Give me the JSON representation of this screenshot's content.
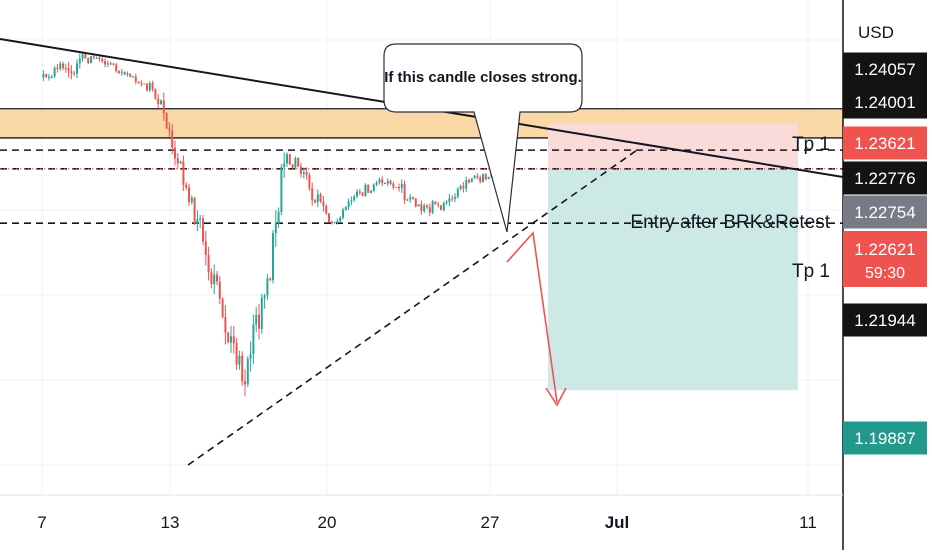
{
  "chart_data": {
    "type": "candlestick",
    "title": "",
    "xlabel": "",
    "ylabel": "",
    "currency": "USD",
    "ylim": [
      1.186,
      1.247
    ],
    "x_ticks": [
      "7",
      "13",
      "20",
      "27",
      "Jul",
      "11"
    ],
    "colors": {
      "up": "#26a69a",
      "down": "#ef5350",
      "tp_zone": "#fbd9a6",
      "stop_zone": "#fbdada",
      "target_zone": "#cde9e6",
      "arrow": "#ef5350",
      "badge_dark": "#131313",
      "badge_red": "#ef5350",
      "badge_gray": "#787b86",
      "badge_green": "#22998c"
    },
    "price_badges": [
      {
        "value": "1.24057",
        "style": "dark"
      },
      {
        "value": "1.24001",
        "style": "dark"
      },
      {
        "value": "1.23621",
        "style": "red"
      },
      {
        "value": "1.22776",
        "style": "dark"
      },
      {
        "value": "1.22754",
        "style": "gray"
      },
      {
        "value": "1.22621",
        "countdown": "59:30",
        "style": "red"
      },
      {
        "value": "1.21944",
        "style": "dark"
      },
      {
        "value": "1.19887",
        "style": "green"
      }
    ],
    "annotations": {
      "callout": "If this candle closes strong.",
      "tp1_upper": "Tp 1",
      "entry": "Entry after BRK&Retest",
      "tp1_lower": "Tp 1"
    },
    "levels": {
      "tp_zone": [
        1.2336,
        1.23
      ],
      "upper_dashed": 1.2285,
      "entry_dashed": 1.2262,
      "current_price": 1.22621,
      "lower_dashed": 1.2195,
      "stop_top": 1.2317,
      "target_bottom": 1.1989
    },
    "series": [
      {
        "name": "",
        "x": [
          "Jun 7",
          "Jun 8",
          "Jun 9",
          "Jun 10",
          "Jun 11",
          "Jun 12",
          "Jun 13",
          "Jun 14",
          "Jun 15",
          "Jun 16",
          "Jun 17",
          "Jun 18",
          "Jun 19",
          "Jun 20",
          "Jun 21",
          "Jun 22",
          "Jun 23",
          "Jun 24",
          "Jun 25",
          "Jun 26",
          "Jun 27"
        ],
        "open": [
          1.2375,
          1.2386,
          1.2398,
          1.2392,
          1.2375,
          1.236,
          1.2275,
          1.22,
          1.2102,
          1.2,
          1.2106,
          1.228,
          1.2238,
          1.2195,
          1.2228,
          1.2245,
          1.2238,
          1.221,
          1.222,
          1.2248,
          1.2252
        ],
        "high": [
          1.2402,
          1.241,
          1.2412,
          1.2398,
          1.238,
          1.2365,
          1.2282,
          1.2205,
          1.211,
          1.2108,
          1.2282,
          1.2292,
          1.2245,
          1.2232,
          1.2258,
          1.2265,
          1.225,
          1.224,
          1.2262,
          1.2268,
          1.2282
        ],
        "low": [
          1.2358,
          1.233,
          1.238,
          1.2365,
          1.2345,
          1.226,
          1.2185,
          1.2095,
          1.1975,
          1.196,
          1.21,
          1.2225,
          1.2185,
          1.219,
          1.2222,
          1.223,
          1.22,
          1.2195,
          1.2212,
          1.224,
          1.225
        ],
        "close": [
          1.2386,
          1.2398,
          1.2392,
          1.2375,
          1.236,
          1.2275,
          1.22,
          1.2102,
          1.2,
          1.2106,
          1.228,
          1.2238,
          1.2195,
          1.2228,
          1.2245,
          1.2238,
          1.221,
          1.222,
          1.2248,
          1.2252,
          1.2262
        ]
      }
    ]
  }
}
